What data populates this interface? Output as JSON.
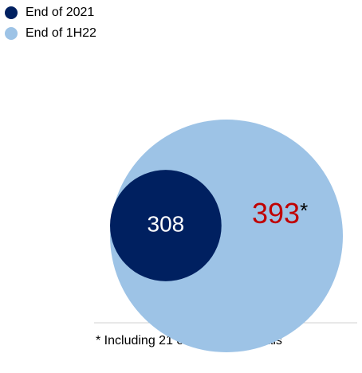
{
  "chart_data": {
    "type": "nested-bubble",
    "categories": [
      "End of 2021",
      "End of 1H22"
    ],
    "values": [
      308,
      393
    ],
    "colors": [
      "#002060",
      "#9dc3e6"
    ],
    "value_colors": [
      "#ffffff",
      "#c00000"
    ],
    "footnote_marker": "*",
    "footnote": "* Including 21 overseas hospitals"
  }
}
